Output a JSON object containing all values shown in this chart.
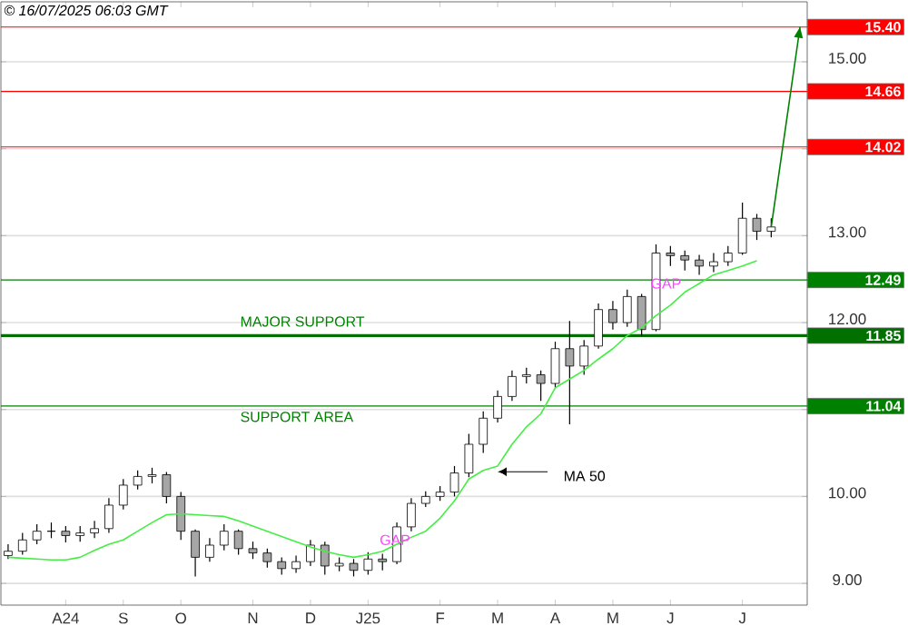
{
  "chart_data": {
    "type": "candlestick",
    "color": "#000000",
    "categories": [
      null,
      null,
      null,
      null,
      "A24",
      null,
      null,
      null,
      "S",
      null,
      null,
      null,
      "O",
      null,
      null,
      null,
      null,
      "N",
      null,
      null,
      null,
      "D",
      null,
      null,
      null,
      "J25",
      null,
      null,
      null,
      null,
      "F",
      null,
      null,
      null,
      "M",
      null,
      null,
      null,
      "A",
      null,
      null,
      null,
      "M",
      null,
      null,
      null,
      "J",
      null,
      null,
      null,
      null,
      "J",
      null,
      null,
      null,
      null
    ],
    "ohlc": [
      [
        9.32,
        9.45,
        9.28,
        9.37
      ],
      [
        9.37,
        9.58,
        9.33,
        9.5
      ],
      [
        9.5,
        9.68,
        9.45,
        9.6
      ],
      [
        9.6,
        9.7,
        9.52,
        9.6
      ],
      [
        9.6,
        9.66,
        9.47,
        9.55
      ],
      [
        9.55,
        9.66,
        9.48,
        9.58
      ],
      [
        9.58,
        9.72,
        9.52,
        9.63
      ],
      [
        9.63,
        9.98,
        9.58,
        9.9
      ],
      [
        9.9,
        10.2,
        9.85,
        10.13
      ],
      [
        10.13,
        10.3,
        10.08,
        10.23
      ],
      [
        10.23,
        10.33,
        10.15,
        10.25
      ],
      [
        10.25,
        10.28,
        9.92,
        10.0
      ],
      [
        10.0,
        10.05,
        9.5,
        9.6
      ],
      [
        9.6,
        9.62,
        9.08,
        9.3
      ],
      [
        9.3,
        9.52,
        9.25,
        9.44
      ],
      [
        9.44,
        9.68,
        9.38,
        9.6
      ],
      [
        9.6,
        9.62,
        9.33,
        9.4
      ],
      [
        9.4,
        9.48,
        9.28,
        9.35
      ],
      [
        9.35,
        9.4,
        9.18,
        9.25
      ],
      [
        9.25,
        9.3,
        9.1,
        9.17
      ],
      [
        9.17,
        9.32,
        9.12,
        9.25
      ],
      [
        9.25,
        9.5,
        9.2,
        9.44
      ],
      [
        9.44,
        9.48,
        9.1,
        9.2
      ],
      [
        9.2,
        9.3,
        9.14,
        9.23
      ],
      [
        9.23,
        9.28,
        9.08,
        9.15
      ],
      [
        9.15,
        9.36,
        9.1,
        9.28
      ],
      [
        9.28,
        9.34,
        9.15,
        9.25
      ],
      [
        9.25,
        9.7,
        9.22,
        9.65
      ],
      [
        9.65,
        9.98,
        9.6,
        9.92
      ],
      [
        9.92,
        10.06,
        9.88,
        10.0
      ],
      [
        10.0,
        10.12,
        9.95,
        10.05
      ],
      [
        10.05,
        10.35,
        10.0,
        10.27
      ],
      [
        10.27,
        10.72,
        10.22,
        10.6
      ],
      [
        10.6,
        10.98,
        10.5,
        10.9
      ],
      [
        10.9,
        11.22,
        10.85,
        11.15
      ],
      [
        11.15,
        11.45,
        11.1,
        11.38
      ],
      [
        11.38,
        11.48,
        11.3,
        11.4
      ],
      [
        11.4,
        11.45,
        11.1,
        11.3
      ],
      [
        11.3,
        11.78,
        11.25,
        11.7
      ],
      [
        11.7,
        12.02,
        10.83,
        11.5
      ],
      [
        11.5,
        11.8,
        11.4,
        11.73
      ],
      [
        11.73,
        12.22,
        11.7,
        12.15
      ],
      [
        12.15,
        12.25,
        11.92,
        12.0
      ],
      [
        12.0,
        12.38,
        11.95,
        12.3
      ],
      [
        12.3,
        12.33,
        11.85,
        11.92
      ],
      [
        11.92,
        12.9,
        11.9,
        12.8
      ],
      [
        12.8,
        12.88,
        12.65,
        12.77
      ],
      [
        12.77,
        12.83,
        12.6,
        12.72
      ],
      [
        12.72,
        12.78,
        12.55,
        12.65
      ],
      [
        12.65,
        12.8,
        12.58,
        12.7
      ],
      [
        12.7,
        12.88,
        12.65,
        12.8
      ],
      [
        12.8,
        13.38,
        12.78,
        13.2
      ],
      [
        13.2,
        13.25,
        12.95,
        13.05
      ],
      [
        13.05,
        13.2,
        12.98,
        13.1
      ],
      null,
      null
    ],
    "series": [
      {
        "type": "line",
        "color": "#44ee44",
        "values": [
          9.3,
          9.29,
          9.28,
          9.27,
          9.27,
          9.3,
          9.38,
          9.45,
          9.5,
          9.6,
          9.7,
          9.79,
          9.8,
          9.79,
          9.78,
          9.77,
          9.72,
          9.66,
          9.6,
          9.54,
          9.48,
          9.42,
          9.37,
          9.33,
          9.3,
          9.33,
          9.37,
          9.45,
          9.53,
          9.6,
          9.75,
          9.95,
          10.2,
          10.3,
          10.35,
          10.6,
          10.8,
          10.95,
          11.25,
          11.35,
          11.45,
          11.58,
          11.7,
          11.85,
          11.94,
          12.08,
          12.2,
          12.35,
          12.45,
          12.55,
          12.6,
          12.65,
          12.71,
          null,
          null,
          null
        ]
      },
      {
        "type": "line",
        "color": "#008000",
        "values": [
          null,
          null,
          null,
          null,
          null,
          null,
          null,
          null,
          null,
          null,
          null,
          null,
          null,
          null,
          null,
          null,
          null,
          null,
          null,
          null,
          null,
          null,
          null,
          null,
          null,
          null,
          null,
          null,
          null,
          null,
          null,
          null,
          null,
          null,
          null,
          null,
          null,
          null,
          null,
          null,
          null,
          null,
          null,
          null,
          null,
          null,
          null,
          null,
          null,
          null,
          null,
          null,
          null,
          13.1,
          14.25,
          15.4
        ]
      }
    ],
    "ylim": [
      8.75,
      15.69
    ],
    "yticks": [
      {
        "value": 9,
        "label": "9.00"
      },
      {
        "value": 10,
        "label": "10.00"
      },
      {
        "value": 11,
        "label": null
      },
      {
        "value": 12,
        "label": "12.00"
      },
      {
        "value": 13,
        "label": "13.00"
      },
      {
        "value": 14,
        "label": null
      },
      {
        "value": 15,
        "label": "15.00"
      }
    ],
    "grid": "y",
    "ref_lines": [
      {
        "axis": "y",
        "value": 15.4,
        "label": "15.40",
        "color": "#ff0000"
      },
      {
        "axis": "y",
        "value": 14.66,
        "label": "14.66",
        "color": "#ff0000"
      },
      {
        "axis": "y",
        "value": 14.02,
        "label": "14.02",
        "color": "#ff0000"
      },
      {
        "axis": "y",
        "value": 12.49,
        "label": "12.49",
        "color": "#008000"
      },
      {
        "axis": "y",
        "value": 11.85,
        "label": "11.85",
        "color": "#007000"
      },
      {
        "axis": "y",
        "value": 11.04,
        "label": "11.04",
        "color": "#008000"
      }
    ],
    "annotations": [
      "© 16/07/2025 06:03 GMT",
      "MAJOR SUPPORT",
      "SUPPORT AREA",
      "GAP",
      "GAP",
      "MA 50"
    ]
  }
}
